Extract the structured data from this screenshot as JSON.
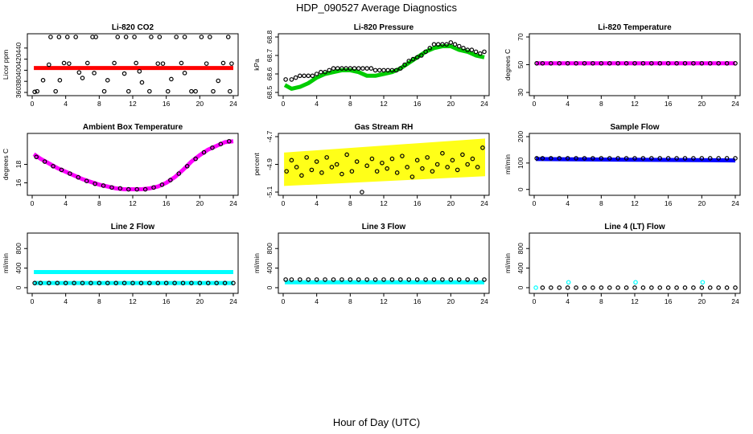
{
  "header": {
    "title": "HDP_090527  Average Diagnostics"
  },
  "footer": {
    "xlabel": "Hour of Day (UTC)"
  },
  "colors": {
    "black": "#000000",
    "red": "#ff0000",
    "green": "#00cc00",
    "magenta": "#ff00ff",
    "yellow": "#ffff00",
    "blue": "#0000ff",
    "cyan": "#00ffff"
  },
  "chart_data": [
    {
      "id": "p1",
      "type": "scatter",
      "title": "Li-820 CO2",
      "ylabel": "Licor ppm",
      "xlim": [
        0,
        24
      ],
      "ylim": [
        360,
        460
      ],
      "xticks": [
        0,
        4,
        8,
        12,
        16,
        20,
        24
      ],
      "yticks": [
        360,
        380,
        400,
        420,
        440
      ],
      "series": [
        {
          "color": "#ff0000",
          "kind": "line",
          "x": [
            0.2,
            24
          ],
          "y": [
            404,
            404
          ]
        },
        {
          "color": "#000000",
          "kind": "points",
          "x": [
            2.2,
            3.2,
            4.2,
            5.2,
            7.2,
            7.6,
            10.2,
            11.2,
            12.2,
            14.2,
            15.2,
            17.2,
            18.2,
            20.2,
            21.2,
            23.4
          ],
          "y": [
            460,
            460,
            460,
            460,
            460,
            460,
            460,
            460,
            460,
            460,
            460,
            460,
            460,
            460,
            460,
            460
          ]
        },
        {
          "color": "#000000",
          "kind": "points",
          "x": [
            0.3,
            1.3,
            2.0,
            3.3,
            4.4,
            6.0,
            7.4,
            9.0,
            11.5,
            12.4,
            13.1,
            15.0,
            16.6,
            18.2,
            19.5,
            20.8,
            22.2,
            23.8
          ],
          "y": [
            361,
            382,
            410,
            382,
            412,
            386,
            395,
            382,
            362,
            413,
            378,
            412,
            384,
            395,
            362,
            412,
            381,
            412
          ]
        },
        {
          "color": "#000000",
          "kind": "points",
          "x": [
            0.6,
            2.8,
            3.8,
            5.6,
            6.6,
            8.6,
            9.8,
            11.0,
            12.8,
            14.0,
            15.6,
            16.2,
            17.8,
            19.0,
            21.6,
            22.8,
            23.6
          ],
          "y": [
            362,
            362,
            413,
            396,
            413,
            362,
            413,
            394,
            398,
            362,
            412,
            362,
            413,
            362,
            362,
            413,
            362
          ]
        }
      ]
    },
    {
      "id": "p2",
      "type": "scatter",
      "title": "Li-820 Pressure",
      "ylabel": "kPa",
      "xlim": [
        0,
        24
      ],
      "ylim": [
        68.5,
        68.8
      ],
      "xticks": [
        0,
        4,
        8,
        12,
        16,
        20,
        24
      ],
      "yticks": [
        68.5,
        68.6,
        68.7,
        68.8
      ],
      "series": [
        {
          "color": "#00cc00",
          "kind": "line",
          "x": [
            0.2,
            1,
            2,
            3,
            4,
            5,
            6,
            7,
            8,
            9,
            10,
            11,
            12,
            13,
            14,
            15,
            16,
            17,
            18,
            19,
            20,
            21,
            22,
            23,
            24
          ],
          "y": [
            68.54,
            68.52,
            68.53,
            68.55,
            68.58,
            68.6,
            68.61,
            68.62,
            68.62,
            68.61,
            68.59,
            68.59,
            68.6,
            68.61,
            68.63,
            68.66,
            68.69,
            68.72,
            68.74,
            68.75,
            68.75,
            68.73,
            68.72,
            68.7,
            68.69
          ]
        },
        {
          "color": "#000000",
          "kind": "points",
          "x": [
            0.3,
            1,
            1.5,
            2,
            2.5,
            3,
            3.5,
            4,
            4.5,
            5,
            5.5,
            6,
            6.5,
            7,
            7.5,
            8,
            8.5,
            9,
            9.5,
            10,
            10.5,
            11,
            11.5,
            12,
            12.5,
            13,
            13.5,
            14,
            14.5,
            15,
            15.5,
            16,
            16.5,
            17,
            17.5,
            18,
            18.5,
            19,
            19.5,
            20,
            20.5,
            21,
            21.5,
            22,
            22.5,
            23,
            23.5,
            24
          ],
          "y": [
            68.57,
            68.57,
            68.58,
            68.59,
            68.59,
            68.59,
            68.59,
            68.6,
            68.61,
            68.61,
            68.62,
            68.63,
            68.63,
            68.63,
            68.63,
            68.63,
            68.63,
            68.63,
            68.63,
            68.63,
            68.63,
            68.62,
            68.62,
            68.62,
            68.62,
            68.62,
            68.62,
            68.63,
            68.65,
            68.67,
            68.68,
            68.69,
            68.7,
            68.72,
            68.74,
            68.76,
            68.76,
            68.76,
            68.76,
            68.77,
            68.76,
            68.75,
            68.74,
            68.73,
            68.73,
            68.72,
            68.71,
            68.72
          ]
        }
      ]
    },
    {
      "id": "p3",
      "type": "scatter",
      "title": "Li-820 Temperature",
      "ylabel": "degrees C",
      "xlim": [
        0,
        24
      ],
      "ylim": [
        30,
        70
      ],
      "xticks": [
        0,
        4,
        8,
        12,
        16,
        20,
        24
      ],
      "yticks": [
        30,
        50,
        70
      ],
      "series": [
        {
          "color": "#ff00ff",
          "kind": "line",
          "x": [
            0.2,
            24
          ],
          "y": [
            51,
            51
          ]
        },
        {
          "color": "#000000",
          "kind": "points",
          "x": [
            0.3,
            1,
            2,
            3,
            4,
            5,
            6,
            7,
            8,
            9,
            10,
            11,
            12,
            13,
            14,
            15,
            16,
            17,
            18,
            19,
            20,
            21,
            22,
            23,
            24
          ],
          "y": [
            51,
            51,
            51,
            51,
            51,
            51,
            51,
            51,
            51,
            51,
            51,
            51,
            51,
            51,
            51,
            51,
            51,
            51,
            51,
            51,
            51,
            51,
            51,
            51,
            51
          ]
        }
      ]
    },
    {
      "id": "p4",
      "type": "scatter",
      "title": "Ambient Box Temperature",
      "ylabel": "degrees C",
      "xlim": [
        0,
        24
      ],
      "ylim": [
        15,
        21
      ],
      "xticks": [
        0,
        4,
        8,
        12,
        16,
        20,
        24
      ],
      "yticks": [
        16,
        18
      ],
      "series": [
        {
          "color": "#ff00ff",
          "kind": "line",
          "x": [
            0.2,
            1,
            2,
            3,
            4,
            5,
            6,
            7,
            8,
            9,
            10,
            11,
            12,
            13,
            14,
            15,
            16,
            17,
            18,
            19,
            20,
            21,
            22,
            23,
            24
          ],
          "y": [
            19.1,
            18.6,
            18.1,
            17.6,
            17.2,
            16.8,
            16.4,
            16.1,
            15.8,
            15.6,
            15.4,
            15.3,
            15.3,
            15.3,
            15.4,
            15.6,
            16.0,
            16.6,
            17.4,
            18.3,
            19.0,
            19.6,
            20.0,
            20.4,
            20.5
          ]
        },
        {
          "color": "#000000",
          "kind": "points",
          "x": [
            0.5,
            1.5,
            2.5,
            3.5,
            4.5,
            5.5,
            6.5,
            7.5,
            8.5,
            9.5,
            10.5,
            11.5,
            12.5,
            13.5,
            14.5,
            15.5,
            16.5,
            17.5,
            18.5,
            19.5,
            20.5,
            21.5,
            22.5,
            23.5
          ],
          "y": [
            18.8,
            18.3,
            17.8,
            17.4,
            17.0,
            16.6,
            16.2,
            15.9,
            15.7,
            15.5,
            15.4,
            15.3,
            15.3,
            15.3,
            15.5,
            15.8,
            16.3,
            17.0,
            17.8,
            18.6,
            19.3,
            19.8,
            20.2,
            20.5
          ]
        }
      ]
    },
    {
      "id": "p5",
      "type": "scatter",
      "title": "Gas Stream RH",
      "ylabel": "percent",
      "xlim": [
        0,
        24
      ],
      "ylim": [
        -5.1,
        -4.7
      ],
      "xticks": [
        0,
        4,
        8,
        12,
        16,
        20,
        24
      ],
      "yticks": [
        -5.1,
        -4.9,
        -4.7
      ],
      "series": [
        {
          "color": "#ffff00",
          "kind": "band",
          "x": [
            0.2,
            24
          ],
          "ylo": [
            -5.05,
            -4.98
          ],
          "yhi": [
            -4.82,
            -4.72
          ]
        },
        {
          "color": "#000000",
          "kind": "points",
          "x": [
            0.4,
            1.0,
            1.6,
            2.2,
            2.8,
            3.4,
            4.0,
            4.6,
            5.2,
            5.8,
            6.4,
            7.0,
            7.6,
            8.2,
            8.8,
            9.4,
            10.0,
            10.6,
            11.2,
            11.8,
            12.4,
            13.0,
            13.6,
            14.2,
            14.8,
            15.4,
            16.0,
            16.6,
            17.2,
            17.8,
            18.4,
            19.0,
            19.6,
            20.2,
            20.8,
            21.4,
            22.0,
            22.6,
            23.2,
            23.8
          ],
          "y": [
            -4.95,
            -4.87,
            -4.92,
            -4.98,
            -4.85,
            -4.94,
            -4.88,
            -4.96,
            -4.85,
            -4.92,
            -4.9,
            -4.97,
            -4.83,
            -4.95,
            -4.88,
            -5.1,
            -4.91,
            -4.86,
            -4.95,
            -4.89,
            -4.93,
            -4.86,
            -4.96,
            -4.84,
            -4.92,
            -4.99,
            -4.87,
            -4.93,
            -4.85,
            -4.95,
            -4.9,
            -4.82,
            -4.92,
            -4.87,
            -4.94,
            -4.83,
            -4.9,
            -4.86,
            -4.92,
            -4.78
          ]
        }
      ]
    },
    {
      "id": "p6",
      "type": "scatter",
      "title": "Sample Flow",
      "ylabel": "ml/min",
      "xlim": [
        0,
        24
      ],
      "ylim": [
        -10,
        200
      ],
      "xticks": [
        0,
        4,
        8,
        12,
        16,
        20,
        24
      ],
      "yticks": [
        0,
        100,
        200
      ],
      "series": [
        {
          "color": "#0000ff",
          "kind": "line",
          "x": [
            0.2,
            24
          ],
          "y": [
            115,
            110
          ]
        },
        {
          "color": "#000000",
          "kind": "points",
          "x": [
            0.3,
            1,
            2,
            3,
            4,
            5,
            6,
            7,
            8,
            9,
            10,
            11,
            12,
            13,
            14,
            15,
            16,
            17,
            18,
            19,
            20,
            21,
            22,
            23,
            24
          ],
          "y": [
            118,
            118,
            118,
            118,
            118,
            118,
            118,
            118,
            118,
            118,
            118,
            118,
            118,
            118,
            118,
            118,
            118,
            118,
            118,
            118,
            118,
            118,
            118,
            118,
            118
          ]
        }
      ]
    },
    {
      "id": "p7",
      "type": "scatter",
      "title": "Line 2 Flow",
      "ylabel": "ml/min",
      "xlim": [
        0,
        24
      ],
      "ylim": [
        -50,
        1050
      ],
      "xticks": [
        0,
        4,
        8,
        12,
        16,
        20,
        24
      ],
      "yticks": [
        0,
        400,
        800
      ],
      "series": [
        {
          "color": "#00ffff",
          "kind": "line",
          "x": [
            0.2,
            24
          ],
          "y": [
            320,
            320
          ]
        },
        {
          "color": "#00ffff",
          "kind": "line",
          "x": [
            0.2,
            24
          ],
          "y": [
            95,
            95
          ]
        },
        {
          "color": "#000000",
          "kind": "points",
          "x": [
            0.3,
            1,
            2,
            3,
            4,
            5,
            6,
            7,
            8,
            9,
            10,
            11,
            12,
            13,
            14,
            15,
            16,
            17,
            18,
            19,
            20,
            21,
            22,
            23,
            24
          ],
          "y": [
            95,
            95,
            95,
            95,
            95,
            95,
            95,
            95,
            95,
            95,
            95,
            95,
            95,
            95,
            95,
            95,
            95,
            95,
            95,
            95,
            95,
            95,
            95,
            95,
            95
          ]
        }
      ]
    },
    {
      "id": "p8",
      "type": "scatter",
      "title": "Line 3 Flow",
      "ylabel": "ml/min",
      "xlim": [
        0,
        24
      ],
      "ylim": [
        -50,
        1050
      ],
      "xticks": [
        0,
        4,
        8,
        12,
        16,
        20,
        24
      ],
      "yticks": [
        0,
        400,
        800
      ],
      "series": [
        {
          "color": "#00ffff",
          "kind": "line",
          "x": [
            0.2,
            24
          ],
          "y": [
            110,
            110
          ]
        },
        {
          "color": "#000000",
          "kind": "points",
          "x": [
            0.3,
            1,
            2,
            3,
            4,
            5,
            6,
            7,
            8,
            9,
            10,
            11,
            12,
            13,
            14,
            15,
            16,
            17,
            18,
            19,
            20,
            21,
            22,
            23,
            24
          ],
          "y": [
            165,
            165,
            165,
            165,
            165,
            165,
            165,
            165,
            165,
            165,
            165,
            165,
            165,
            165,
            165,
            165,
            165,
            165,
            165,
            165,
            165,
            165,
            165,
            165,
            165
          ]
        }
      ]
    },
    {
      "id": "p9",
      "type": "scatter",
      "title": "Line 4 (LT) Flow",
      "ylabel": "ml/min",
      "xlim": [
        0,
        24
      ],
      "ylim": [
        -50,
        1050
      ],
      "xticks": [
        0,
        4,
        8,
        12,
        16,
        20,
        24
      ],
      "yticks": [
        0,
        400,
        800
      ],
      "series": [
        {
          "color": "#00ffff",
          "kind": "points",
          "x": [
            0.2,
            4.1,
            12.1,
            20.1
          ],
          "y": [
            0,
            110,
            110,
            110
          ]
        },
        {
          "color": "#000000",
          "kind": "points",
          "x": [
            1,
            2,
            3,
            4,
            5,
            6,
            7,
            8,
            9,
            10,
            11,
            12,
            13,
            14,
            15,
            16,
            17,
            18,
            19,
            20,
            21,
            22,
            23,
            24
          ],
          "y": [
            0,
            0,
            0,
            0,
            0,
            0,
            0,
            0,
            0,
            0,
            0,
            0,
            0,
            0,
            0,
            0,
            0,
            0,
            0,
            0,
            0,
            0,
            0,
            0
          ]
        }
      ]
    }
  ]
}
